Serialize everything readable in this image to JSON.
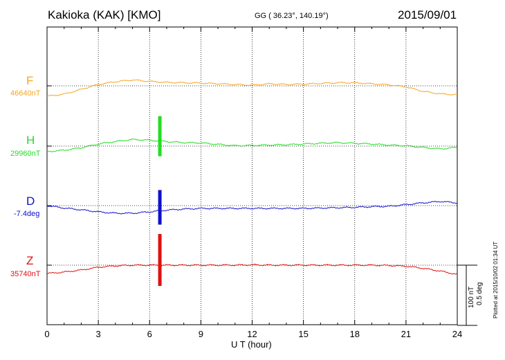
{
  "header": {
    "title": "Kakioka (KAK)  [KMO]",
    "coords": "GG ( 36.23°, 140.19°)",
    "date": "2015/09/01"
  },
  "plotted_text": "Plotted at 2015/10/02 01:34 UT",
  "scale_bar": {
    "nt": "100 nT",
    "deg": "0.5 deg"
  },
  "channels": [
    {
      "name": "F",
      "baseline": "46640nT",
      "color": "#f5a623"
    },
    {
      "name": "H",
      "baseline": "29960nT",
      "color": "#22dd22"
    },
    {
      "name": "D",
      "baseline": "-7.4deg",
      "color": "#1010cc"
    },
    {
      "name": "Z",
      "baseline": "35740nT",
      "color": "#e01010"
    }
  ],
  "chart_data": {
    "type": "line",
    "xlabel": "U T (hour)",
    "xlim": [
      0,
      24
    ],
    "xticks": [
      "0",
      "3",
      "6",
      "9",
      "12",
      "15",
      "18",
      "21",
      "24"
    ],
    "y_unit_note": "offset from baseline, nT (D in 0.005 deg units)",
    "series": [
      {
        "name": "F",
        "x": [
          0,
          1,
          2,
          3,
          4,
          5,
          6,
          7,
          8,
          9,
          10,
          11,
          12,
          13,
          14,
          15,
          16,
          17,
          18,
          19,
          20,
          21,
          22,
          23,
          24
        ],
        "values": [
          -30,
          -24,
          -10,
          4,
          12,
          17,
          13,
          10,
          9,
          8,
          6,
          4,
          2,
          6,
          4,
          5,
          7,
          9,
          9,
          6,
          3,
          -3,
          -16,
          -23,
          -26
        ]
      },
      {
        "name": "H",
        "x": [
          0,
          1,
          2,
          3,
          4,
          5,
          6,
          7,
          8,
          9,
          10,
          11,
          12,
          13,
          14,
          15,
          16,
          17,
          18,
          19,
          20,
          21,
          22,
          23,
          24
        ],
        "values": [
          -16,
          -12,
          -5,
          6,
          13,
          19,
          17,
          13,
          10,
          9,
          5,
          1,
          2,
          3,
          4,
          6,
          8,
          10,
          8,
          6,
          3,
          1,
          -4,
          -8,
          -4
        ]
      },
      {
        "name": "D",
        "x": [
          0,
          1,
          2,
          3,
          4,
          5,
          6,
          7,
          8,
          9,
          10,
          11,
          12,
          13,
          14,
          15,
          16,
          17,
          18,
          19,
          20,
          21,
          22,
          23,
          24
        ],
        "values": [
          0,
          -7,
          -12,
          -18,
          -22,
          -22,
          -18,
          -13,
          -10,
          -8,
          -8,
          -8,
          -8,
          -8,
          -8,
          -8,
          -7,
          -6,
          -5,
          -3,
          -2,
          3,
          8,
          12,
          8
        ]
      },
      {
        "name": "Z",
        "x": [
          0,
          1,
          2,
          3,
          4,
          5,
          6,
          7,
          8,
          9,
          10,
          11,
          12,
          13,
          14,
          15,
          16,
          17,
          18,
          19,
          20,
          21,
          22,
          23,
          24
        ],
        "values": [
          -24,
          -20,
          -14,
          -6,
          -2,
          0,
          0,
          0,
          0,
          0,
          0,
          0,
          1,
          0,
          0,
          0,
          0,
          0,
          0,
          0,
          -1,
          -3,
          -9,
          -17,
          -27
        ]
      }
    ],
    "disturbance": {
      "time": 6.6,
      "channels": [
        "H",
        "D",
        "Z"
      ]
    }
  }
}
